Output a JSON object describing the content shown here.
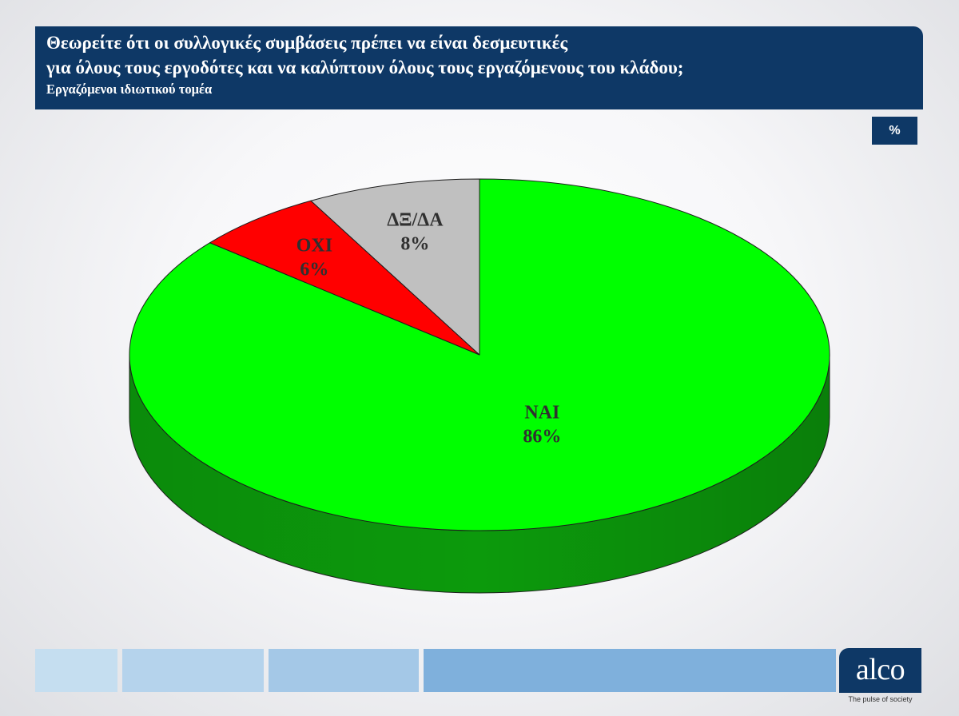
{
  "header": {
    "title_line1": "Θεωρείτε ότι οι συλλογικές συμβάσεις πρέπει να είναι δεσμευτικές",
    "title_line2": "για όλους τους εργοδότες και να καλύπτουν όλους τους εργαζόμενους του κλάδου;",
    "subtitle": "Εργαζόμενοι ιδιωτικού τομέα"
  },
  "unit_badge": "%",
  "chart_data": {
    "type": "pie",
    "style": "3d",
    "slices": [
      {
        "label": "ΝΑΙ",
        "value": 86,
        "value_label": "86%",
        "color": "#00ff00",
        "side_color": "#0c9a0c"
      },
      {
        "label": "ΟΧΙ",
        "value": 6,
        "value_label": "6%",
        "color": "#ff0000",
        "side_color": "#a00000"
      },
      {
        "label": "ΔΞ/ΔΑ",
        "value": 8,
        "value_label": "8%",
        "color": "#c0c0c0",
        "side_color": "#8a8a8a"
      }
    ]
  },
  "footer": {
    "logo_text": "alco",
    "tagline": "The pulse of society",
    "bar_colors": [
      "#c5def0",
      "#b5d3ec",
      "#a4c8e7",
      "#7fb0dc"
    ]
  },
  "colors": {
    "header_bg": "#0e3866"
  }
}
